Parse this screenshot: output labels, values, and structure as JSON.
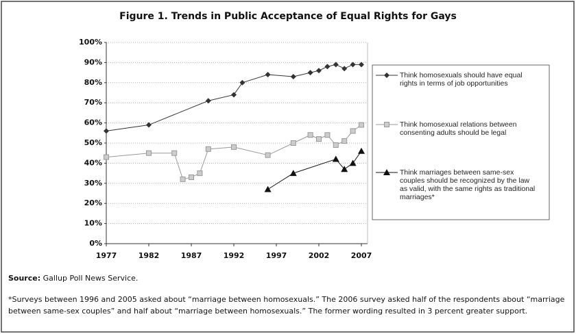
{
  "chart_data": {
    "type": "line",
    "title": "Figure 1. Trends in Public Acceptance of Equal Rights for Gays",
    "xlim": [
      1977,
      2007
    ],
    "xticks": [
      1977,
      1982,
      1987,
      1992,
      1997,
      2002,
      2007
    ],
    "ylim": [
      0,
      100
    ],
    "yticks": [
      {
        "value": 0,
        "label": "0%"
      },
      {
        "value": 10,
        "label": "10%"
      },
      {
        "value": 20,
        "label": "20%"
      },
      {
        "value": 30,
        "label": "30%"
      },
      {
        "value": 40,
        "label": "40%"
      },
      {
        "value": 50,
        "label": "50%"
      },
      {
        "value": 60,
        "label": "60%"
      },
      {
        "value": 70,
        "label": "70%"
      },
      {
        "value": 80,
        "label": "80%"
      },
      {
        "value": 90,
        "label": "90%"
      },
      {
        "value": 100,
        "label": "100%"
      }
    ],
    "grid": true,
    "series": [
      {
        "name": "Think homosexuals should have equal rights in terms of job opportunities",
        "color": "#333333",
        "marker": "diamond",
        "x": [
          1977,
          1982,
          1989,
          1992,
          1993,
          1996,
          1999,
          2001,
          2002,
          2003,
          2004,
          2005,
          2006,
          2007
        ],
        "values": [
          56,
          59,
          71,
          74,
          80,
          84,
          83,
          85,
          86,
          88,
          89,
          87,
          89,
          89
        ]
      },
      {
        "name": "Think homosexual relations between consenting adults should be legal",
        "color": "#999999",
        "marker": "square",
        "x": [
          1977,
          1982,
          1985,
          1986,
          1987,
          1988,
          1989,
          1992,
          1996,
          1999,
          2001,
          2002,
          2003,
          2004,
          2005,
          2006,
          2007
        ],
        "values": [
          43,
          45,
          45,
          32,
          33,
          35,
          47,
          48,
          44,
          50,
          54,
          52,
          54,
          49,
          51,
          56,
          59
        ]
      },
      {
        "name": "Think marriages between same-sex couples should be recognized by the law as valid, with the same rights as traditional marriages*",
        "color": "#111111",
        "marker": "triangle",
        "x": [
          1996,
          1999,
          2004,
          2005,
          2006,
          2007
        ],
        "values": [
          27,
          35,
          42,
          37,
          40,
          46
        ]
      }
    ],
    "source_label": "Source:",
    "source_text": "Gallup Poll News Service.",
    "footnote": "*Surveys between 1996 and 2005 asked about “marriage between homosexuals.” The 2006 survey asked half of the respondents about “marriage between same-sex couples” and half about “marriage between homosexuals.” The former wording resulted in 3 percent greater support."
  }
}
